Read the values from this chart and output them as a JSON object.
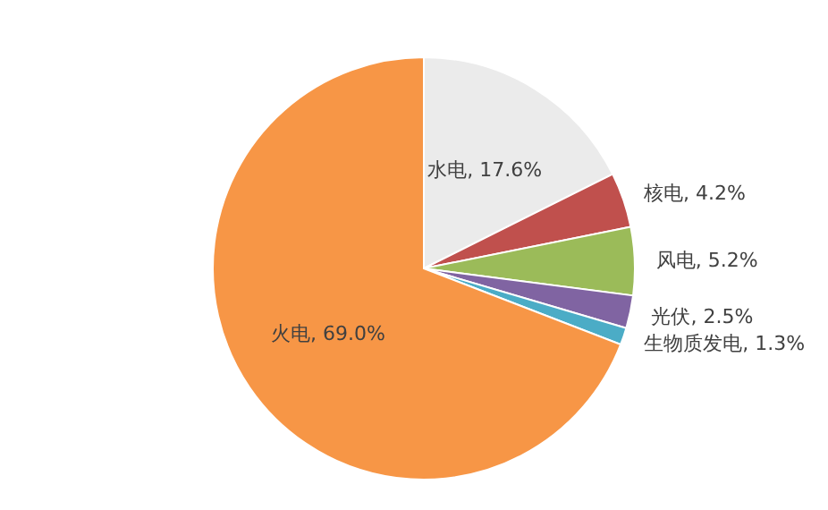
{
  "chart_data": {
    "type": "pie",
    "categories": [
      "水电",
      "核电",
      "风电",
      "光伏",
      "生物质发电",
      "火电"
    ],
    "values": [
      17.6,
      4.2,
      5.2,
      2.5,
      1.3,
      69.0
    ],
    "value_labels": [
      "17.6%",
      "4.2%",
      "5.2%",
      "2.5%",
      "1.3%",
      "69.0%"
    ],
    "colors": [
      "#ebebeb",
      "#c0504d",
      "#9bbb59",
      "#8064a2",
      "#4bacc6",
      "#f79646"
    ],
    "legend": false
  }
}
